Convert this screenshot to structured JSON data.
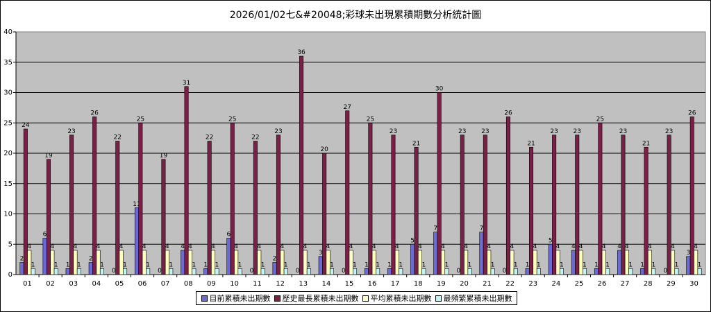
{
  "chart_data": {
    "type": "bar",
    "title": "2026/01/02七&#20048;彩球未出現累積期數分析統計圖",
    "xlabel": "",
    "ylabel": "",
    "ylim": [
      0,
      40
    ],
    "yticks": [
      0,
      5,
      10,
      15,
      20,
      25,
      30,
      35,
      40
    ],
    "grid": true,
    "legend_position": "bottom",
    "categories": [
      "01",
      "02",
      "03",
      "04",
      "05",
      "06",
      "07",
      "08",
      "09",
      "10",
      "11",
      "12",
      "13",
      "14",
      "15",
      "16",
      "17",
      "18",
      "19",
      "20",
      "21",
      "22",
      "23",
      "24",
      "25",
      "26",
      "27",
      "28",
      "29",
      "30"
    ],
    "series": [
      {
        "name": "目前累積未出期數",
        "color": "#6b6bd6",
        "values": [
          2,
          6,
          1,
          2,
          0,
          11,
          0,
          4,
          1,
          6,
          0,
          2,
          0,
          3,
          0,
          1,
          1,
          5,
          7,
          0,
          7,
          0,
          1,
          5,
          4,
          1,
          4,
          1,
          0,
          3
        ]
      },
      {
        "name": "歷史最長累積未出期數",
        "color": "#7a1f45",
        "values": [
          24,
          19,
          23,
          26,
          22,
          25,
          19,
          31,
          22,
          25,
          22,
          23,
          36,
          20,
          27,
          25,
          23,
          21,
          30,
          23,
          23,
          26,
          21,
          23,
          23,
          25,
          23,
          21,
          23,
          26
        ]
      },
      {
        "name": "平均累積未出期數",
        "color": "#ffffc0",
        "values": [
          4,
          4,
          4,
          4,
          4,
          4,
          4,
          4,
          4,
          4,
          4,
          4,
          4,
          4,
          4,
          4,
          4,
          4,
          4,
          4,
          4,
          4,
          4,
          4,
          4,
          4,
          4,
          4,
          4,
          4
        ]
      },
      {
        "name": "最頻繁累積未出期數",
        "color": "#c6f2f2",
        "values": [
          1,
          1,
          1,
          1,
          1,
          1,
          1,
          1,
          1,
          1,
          1,
          1,
          1,
          1,
          1,
          1,
          1,
          1,
          1,
          1,
          1,
          1,
          1,
          1,
          1,
          1,
          1,
          1,
          1,
          1
        ]
      }
    ]
  }
}
